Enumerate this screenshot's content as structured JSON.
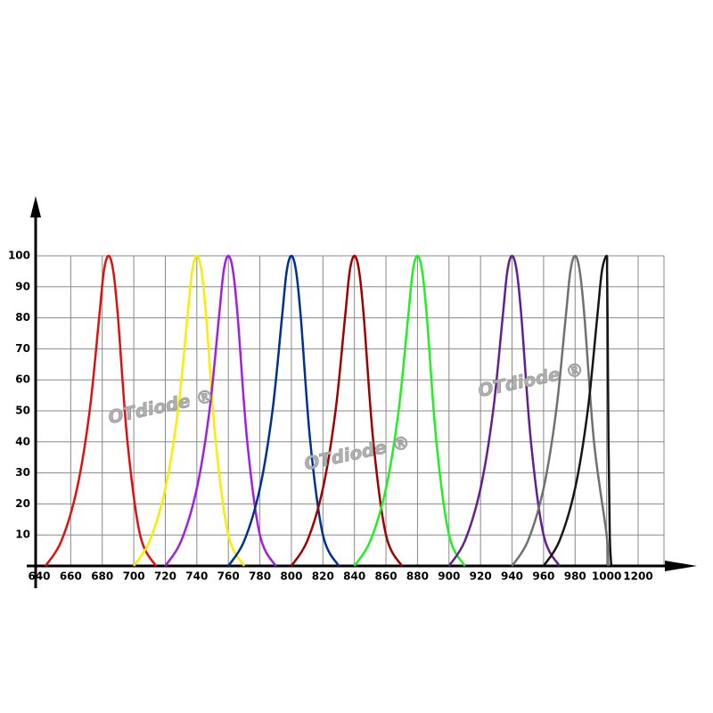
{
  "chart_data": {
    "type": "line",
    "annotations": [
      "OTdiode ®",
      "OTdiode ®",
      "OTdiode ®"
    ],
    "ylim": [
      0,
      100
    ],
    "yticks": [
      10,
      20,
      30,
      40,
      50,
      60,
      70,
      80,
      90,
      100
    ],
    "xticks": [
      640,
      660,
      680,
      700,
      720,
      740,
      760,
      780,
      800,
      820,
      840,
      860,
      880,
      900,
      920,
      940,
      960,
      980,
      1000,
      1200
    ],
    "grid": true,
    "series": [
      {
        "color": "#e01010",
        "x": [
          644,
          654,
          664,
          672,
          678,
          681,
          684,
          687,
          690,
          696,
          704,
          714
        ],
        "values": [
          0,
          8,
          25,
          50,
          80,
          95,
          100,
          95,
          80,
          40,
          10,
          0
        ]
      },
      {
        "color": "#f5f000",
        "x": [
          700,
          710,
          720,
          728,
          734,
          737,
          740,
          743,
          746,
          752,
          760,
          770
        ],
        "values": [
          0,
          8,
          25,
          50,
          80,
          95,
          100,
          95,
          80,
          40,
          10,
          0
        ]
      },
      {
        "color": "#a020e0",
        "x": [
          720,
          730,
          740,
          748,
          754,
          757,
          760,
          763,
          766,
          772,
          780,
          790
        ],
        "values": [
          0,
          8,
          25,
          50,
          80,
          95,
          100,
          95,
          80,
          40,
          10,
          0
        ]
      },
      {
        "color": "#003090",
        "x": [
          760,
          770,
          780,
          788,
          794,
          797,
          800,
          803,
          806,
          812,
          820,
          830
        ],
        "values": [
          0,
          8,
          25,
          50,
          80,
          95,
          100,
          95,
          80,
          40,
          10,
          0
        ]
      },
      {
        "color": "#a00000",
        "x": [
          800,
          810,
          820,
          828,
          834,
          837,
          840,
          843,
          846,
          852,
          860,
          870
        ],
        "values": [
          0,
          8,
          25,
          50,
          80,
          95,
          100,
          95,
          80,
          40,
          10,
          0
        ]
      },
      {
        "color": "#20f020",
        "x": [
          840,
          850,
          860,
          868,
          874,
          877,
          880,
          883,
          886,
          892,
          900,
          910
        ],
        "values": [
          0,
          8,
          25,
          50,
          80,
          95,
          100,
          95,
          80,
          40,
          10,
          0
        ]
      },
      {
        "color": "#602090",
        "x": [
          900,
          910,
          920,
          928,
          934,
          937,
          940,
          943,
          946,
          952,
          960,
          970
        ],
        "values": [
          0,
          8,
          25,
          50,
          80,
          95,
          100,
          95,
          80,
          40,
          10,
          0
        ]
      },
      {
        "color": "#707070",
        "x": [
          940,
          950,
          960,
          968,
          974,
          977,
          980,
          983,
          986,
          992,
          1000,
          1010
        ],
        "values": [
          0,
          8,
          25,
          50,
          80,
          95,
          100,
          95,
          80,
          40,
          10,
          0
        ]
      },
      {
        "color": "#151515",
        "x": [
          960,
          970,
          980,
          988,
          994,
          997,
          1000,
          1003,
          1006,
          1012,
          1020,
          1030
        ],
        "values": [
          0,
          8,
          25,
          50,
          80,
          95,
          100,
          95,
          80,
          40,
          10,
          0
        ]
      }
    ]
  }
}
